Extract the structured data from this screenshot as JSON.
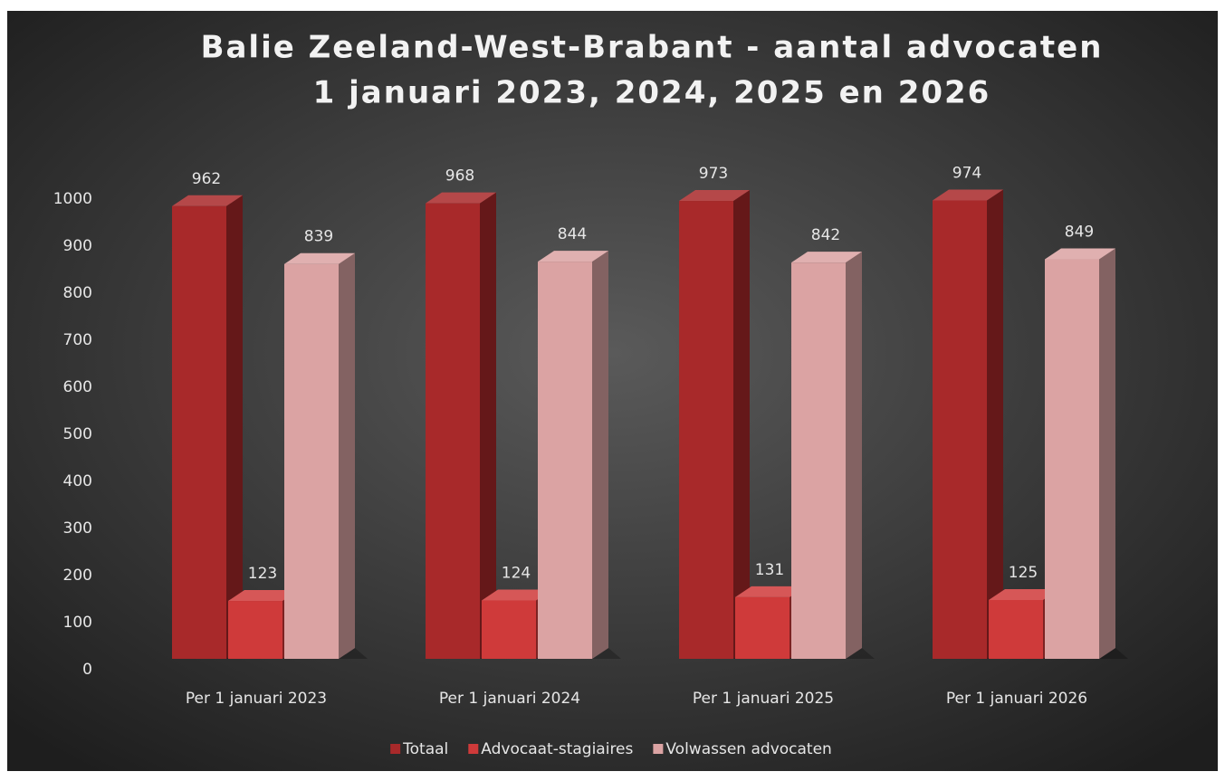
{
  "chart_data": {
    "type": "bar3d",
    "title": [
      "Balie Zeeland-West-Brabant - aantal advocaten",
      "1 januari 2023, 2024, 2025 en 2026"
    ],
    "categories": [
      "Per 1 januari 2023",
      "Per 1 januari 2024",
      "Per 1 januari 2025",
      "Per 1 januari 2026"
    ],
    "series": [
      {
        "name": "Totaal",
        "color": "#a8292a",
        "values": [
          962,
          968,
          973,
          974
        ]
      },
      {
        "name": "Advocaat-stagiaires",
        "color": "#cf3a3a",
        "values": [
          123,
          124,
          131,
          125
        ]
      },
      {
        "name": "Volwassen advocaten",
        "color": "#dba3a3",
        "values": [
          839,
          844,
          842,
          849
        ]
      }
    ],
    "ylim": [
      0,
      1000
    ],
    "yticks": [
      0,
      100,
      200,
      300,
      400,
      500,
      600,
      700,
      800,
      900,
      1000
    ],
    "legend": "bottom"
  }
}
